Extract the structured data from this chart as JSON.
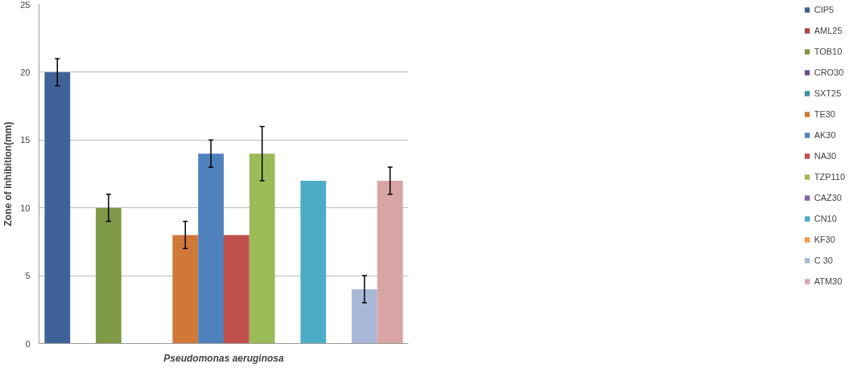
{
  "chart_data": {
    "type": "bar",
    "xlabel": "Pseudomonas aeruginosa",
    "ylabel": "Zone of inhibition(mm)",
    "categories": [
      null
    ],
    "series": [
      {
        "name": "CIP5",
        "color": "#3f6398",
        "values": [
          20
        ],
        "errors": [
          1
        ]
      },
      {
        "name": "AML25",
        "color": "#a94442",
        "values": [
          0
        ],
        "errors": [
          null
        ]
      },
      {
        "name": "TOB10",
        "color": "#7f9a46",
        "values": [
          10
        ],
        "errors": [
          1
        ]
      },
      {
        "name": "CRO30",
        "color": "#6a4f8c",
        "values": [
          0
        ],
        "errors": [
          null
        ]
      },
      {
        "name": "SXT25",
        "color": "#3b8fa8",
        "values": [
          0
        ],
        "errors": [
          null
        ]
      },
      {
        "name": "TE30",
        "color": "#d07838",
        "values": [
          8
        ],
        "errors": [
          1
        ]
      },
      {
        "name": "AK30",
        "color": "#4f81bd",
        "values": [
          14
        ],
        "errors": [
          1
        ]
      },
      {
        "name": "NA30",
        "color": "#c0504d",
        "values": [
          8
        ],
        "errors": [
          null
        ]
      },
      {
        "name": "TZP110",
        "color": "#9bbb59",
        "values": [
          14
        ],
        "errors": [
          2
        ]
      },
      {
        "name": "CAZ30",
        "color": "#8064a2",
        "values": [
          0
        ],
        "errors": [
          null
        ]
      },
      {
        "name": "CN10",
        "color": "#4bacc6",
        "values": [
          12
        ],
        "errors": [
          null
        ]
      },
      {
        "name": "KF30",
        "color": "#f79646",
        "values": [
          0
        ],
        "errors": [
          null
        ]
      },
      {
        "name": "C 30",
        "color": "#a9b8d9",
        "values": [
          4
        ],
        "errors": [
          1
        ]
      },
      {
        "name": "ATM30",
        "color": "#d9a5a4",
        "values": [
          12
        ],
        "errors": [
          1
        ]
      }
    ],
    "ylim": [
      0,
      25
    ],
    "yticks": [
      0,
      5,
      10,
      15,
      20,
      25
    ],
    "grid": "y",
    "legend": "right"
  }
}
